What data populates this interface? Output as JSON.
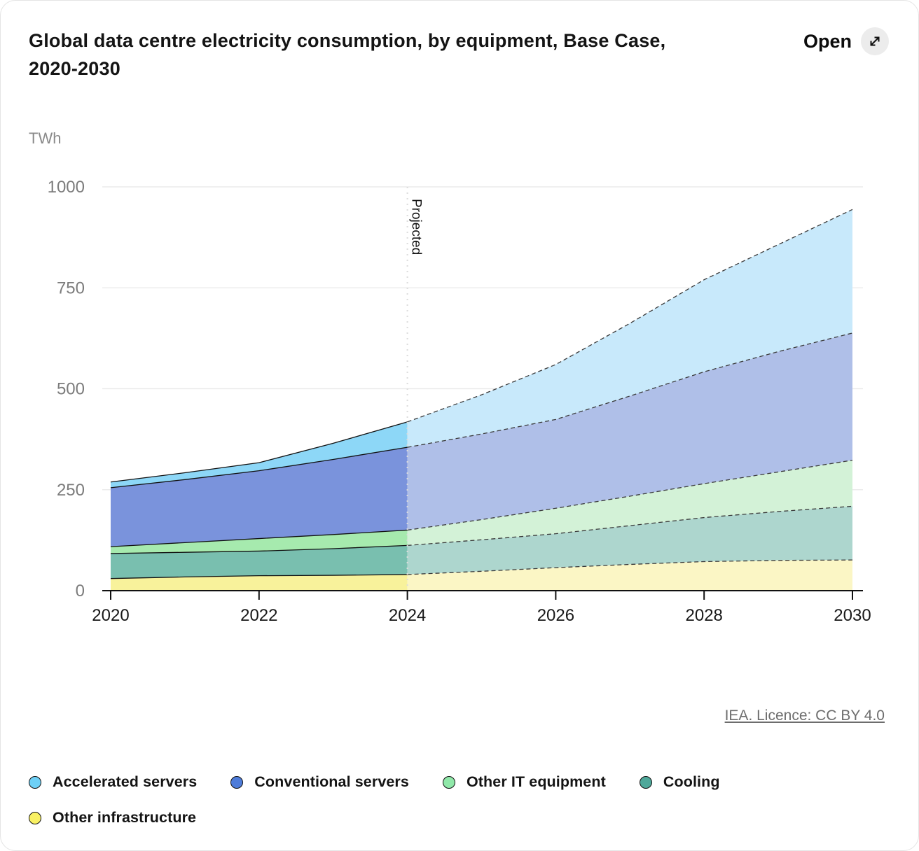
{
  "card": {
    "title_line1": "Global data centre electricity consumption, by equipment, Base Case,",
    "title_line2": "2020-2030",
    "open_label": "Open",
    "attribution": "IEA. Licence: CC BY 4.0"
  },
  "icons": {
    "open_icon": "expand-diagonal-arrow"
  },
  "chart_data": {
    "type": "area",
    "stacked": true,
    "title": "Global data centre electricity consumption, by equipment, Base Case, 2020-2030",
    "unit_label": "TWh",
    "x": [
      2020,
      2021,
      2022,
      2023,
      2024,
      2025,
      2026,
      2027,
      2028,
      2029,
      2030
    ],
    "x_ticks": [
      2020,
      2022,
      2024,
      2026,
      2028,
      2030
    ],
    "y_ticks": [
      0,
      250,
      500,
      750,
      1000
    ],
    "ylim": [
      0,
      1000
    ],
    "grid": "horizontal",
    "legend_position": "bottom",
    "projected_from": 2024,
    "projected_label": "Projected",
    "series": [
      {
        "name": "Other infrastructure",
        "values": [
          30,
          34,
          37,
          38,
          40,
          48,
          57,
          65,
          72,
          75,
          76
        ],
        "fill_solid": "#F8F29B",
        "fill_projected": "#FBF6C5",
        "legend_color": "#F9F163"
      },
      {
        "name": "Cooling",
        "values": [
          62,
          61,
          61,
          66,
          72,
          78,
          84,
          96,
          109,
          121,
          133
        ],
        "fill_solid": "#79BFAF",
        "fill_projected": "#ADD6CE",
        "legend_color": "#4FA89A"
      },
      {
        "name": "Other IT equipment",
        "values": [
          17,
          24,
          31,
          35,
          38,
          50,
          63,
          73,
          84,
          98,
          114
        ],
        "fill_solid": "#A6EAAE",
        "fill_projected": "#D3F2D7",
        "legend_color": "#90E8A9"
      },
      {
        "name": "Conventional servers",
        "values": [
          146,
          156,
          168,
          186,
          205,
          212,
          220,
          248,
          277,
          298,
          315
        ],
        "fill_solid": "#7A93DC",
        "fill_projected": "#AFBFE8",
        "legend_color": "#4E7CD9"
      },
      {
        "name": "Accelerated servers",
        "values": [
          14,
          17,
          20,
          40,
          63,
          97,
          136,
          180,
          228,
          265,
          306
        ],
        "fill_solid": "#8DD7F7",
        "fill_projected": "#C8E9FB",
        "legend_color": "#6ED0F6"
      }
    ],
    "legend_order": [
      "Accelerated servers",
      "Conventional servers",
      "Other IT equipment",
      "Cooling",
      "Other infrastructure"
    ],
    "totals_by_year": [
      269,
      292,
      317,
      365,
      418,
      485,
      560,
      662,
      770,
      857,
      944
    ],
    "style": {
      "grid_color": "#e8e8e8",
      "axis_color": "#111111",
      "historical_line_color": "#111111",
      "projected_line_color": "#3a3a3a",
      "divider_color": "#dcdcdc",
      "y_label_color": "#7c7c7c",
      "x_label_color": "#191919"
    }
  }
}
